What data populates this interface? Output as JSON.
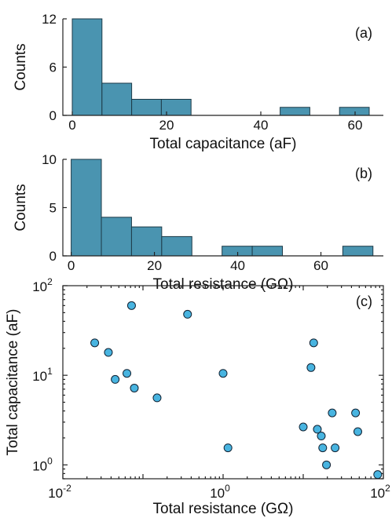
{
  "chart_data": [
    {
      "type": "bar",
      "panel": "(a)",
      "xlabel": "Total capacitance (aF)",
      "ylabel": "Counts",
      "xlim": [
        -2,
        66
      ],
      "ylim": [
        0,
        12
      ],
      "xticks": [
        "0",
        "20",
        "40",
        "60"
      ],
      "yticks": [
        "0",
        "6",
        "12"
      ],
      "bin_width": 6.3,
      "bin_starts": [
        0,
        6.3,
        12.6,
        18.9,
        44.1,
        56.7
      ],
      "values": [
        12,
        4,
        2,
        2,
        1,
        1
      ]
    },
    {
      "type": "bar",
      "panel": "(b)",
      "xlabel": "Total resistance (GΩ)",
      "ylabel": "Counts",
      "xlim": [
        -2,
        75
      ],
      "ylim": [
        0,
        10
      ],
      "xticks": [
        "0",
        "20",
        "40",
        "60"
      ],
      "yticks": [
        "0",
        "5",
        "10"
      ],
      "bin_width": 7.25,
      "bin_starts": [
        0,
        7.25,
        14.5,
        21.75,
        36.25,
        43.5,
        65.25
      ],
      "values": [
        10,
        4,
        3,
        2,
        1,
        1,
        1
      ]
    },
    {
      "type": "scatter",
      "panel": "(c)",
      "xlabel": "Total resistance (GΩ)",
      "ylabel": "Total capacitance (aF)",
      "xscale": "log",
      "yscale": "log",
      "xlim": [
        0.01,
        100
      ],
      "ylim": [
        0.7,
        100
      ],
      "xticks": [
        {
          "base": "10",
          "exp": "-2"
        },
        {
          "base": "10",
          "exp": "0"
        },
        {
          "base": "10",
          "exp": "2"
        }
      ],
      "yticks": [
        {
          "base": "10",
          "exp": "0"
        },
        {
          "base": "10",
          "exp": "1"
        },
        {
          "base": "10",
          "exp": "2"
        }
      ],
      "points": [
        [
          0.025,
          23
        ],
        [
          0.037,
          18
        ],
        [
          0.045,
          9
        ],
        [
          0.063,
          10.5
        ],
        [
          0.072,
          60
        ],
        [
          0.078,
          7.2
        ],
        [
          0.15,
          5.6
        ],
        [
          0.36,
          48
        ],
        [
          1.0,
          10.5
        ],
        [
          1.15,
          1.55
        ],
        [
          10.0,
          2.65
        ],
        [
          12.5,
          12.2
        ],
        [
          13.5,
          23
        ],
        [
          15.0,
          2.5
        ],
        [
          16.8,
          2.1
        ],
        [
          17.5,
          1.55
        ],
        [
          19.5,
          1.0
        ],
        [
          23.0,
          3.8
        ],
        [
          25.0,
          1.55
        ],
        [
          45.0,
          3.8
        ],
        [
          48.0,
          2.35
        ],
        [
          85.0,
          0.78
        ]
      ]
    }
  ]
}
